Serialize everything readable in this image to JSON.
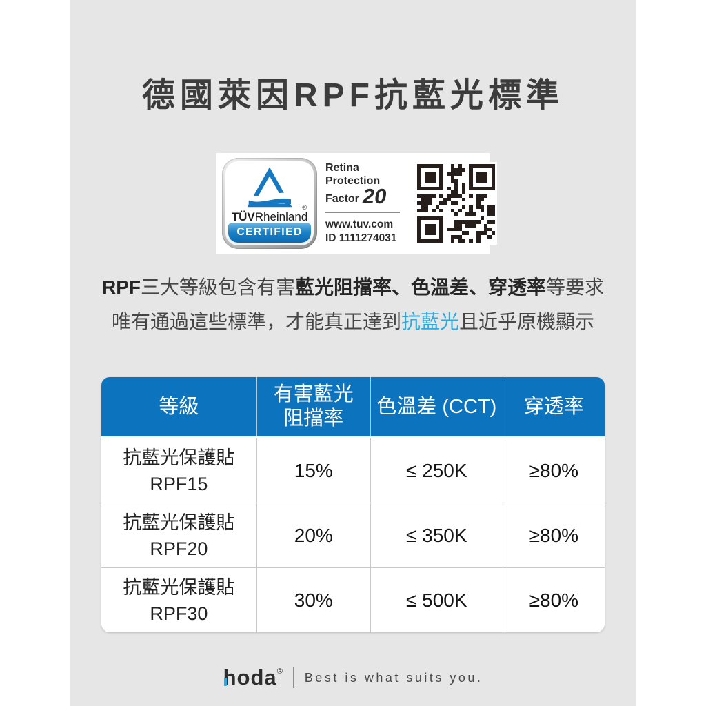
{
  "page": {
    "title": "德國萊因RPF抗藍光標準",
    "background_color": "#e6e6e6",
    "accent_blue": "#0c74be",
    "highlight_blue": "#29abe2"
  },
  "certification": {
    "tuv_brand_bold": "TÜV",
    "tuv_brand_rest": "Rheinland",
    "registered_mark": "®",
    "certified_label": "CERTIFIED",
    "retina_line1": "Retina",
    "retina_line2": "Protection",
    "retina_line3": "Factor",
    "factor_value": "20",
    "website": "www.tuv.com",
    "cert_id": "ID 1111274031"
  },
  "description": {
    "line1_bold_prefix": "RPF",
    "line1_regular1": "三大等級包含有害",
    "line1_bold": "藍光阻擋率、色溫差、穿透率",
    "line1_regular2": "等要求",
    "line2_regular1": "唯有通過這些標準，才能真正達到",
    "line2_highlight": "抗藍光",
    "line2_regular2": "且近乎原機顯示"
  },
  "table": {
    "headers": {
      "col1": "等級",
      "col2_line1": "有害藍光",
      "col2_line2": "阻擋率",
      "col3": "色溫差 (CCT)",
      "col4": "穿透率"
    },
    "rows": [
      {
        "name_line1": "抗藍光保護貼",
        "name_line2": "RPF15",
        "blocking": "15%",
        "cct": "≤ 250K",
        "transmittance": "≥80%"
      },
      {
        "name_line1": "抗藍光保護貼",
        "name_line2": "RPF20",
        "blocking": "20%",
        "cct": "≤ 350K",
        "transmittance": "≥80%"
      },
      {
        "name_line1": "抗藍光保護貼",
        "name_line2": "RPF30",
        "blocking": "30%",
        "cct": "≤ 500K",
        "transmittance": "≥80%"
      }
    ]
  },
  "footer": {
    "brand": "hoda",
    "registered": "®",
    "slogan": "Best is what suits you."
  }
}
